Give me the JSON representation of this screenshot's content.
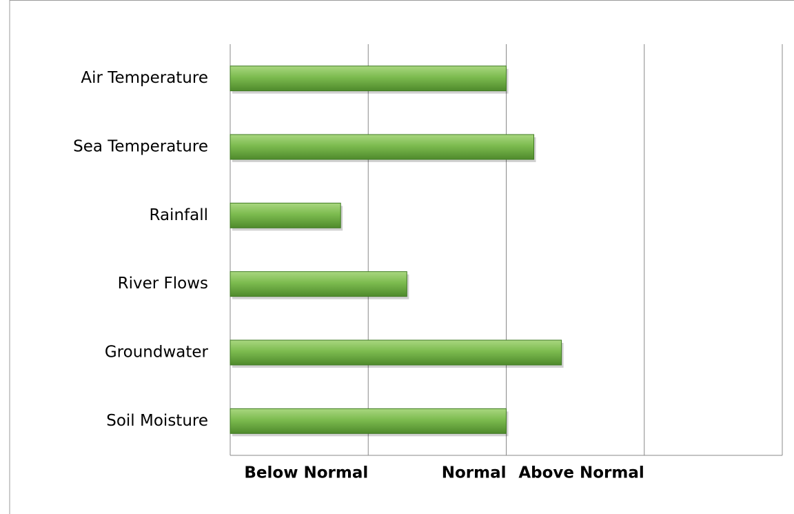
{
  "chart_data": {
    "type": "bar",
    "orientation": "horizontal",
    "categories": [
      "Air Temperature",
      "Sea Temperature",
      "Rainfall",
      "River Flows",
      "Groundwater",
      "Soil Moisture"
    ],
    "values": [
      2.0,
      2.2,
      0.8,
      1.28,
      2.4,
      2.0
    ],
    "color": "#7cbb4f",
    "xlim": [
      0,
      4
    ],
    "xticks": [
      {
        "value": 1,
        "label": "Below Normal"
      },
      {
        "value": 2,
        "label": "Normal"
      },
      {
        "value": 3,
        "label": "Above Normal"
      }
    ],
    "grid": true
  }
}
